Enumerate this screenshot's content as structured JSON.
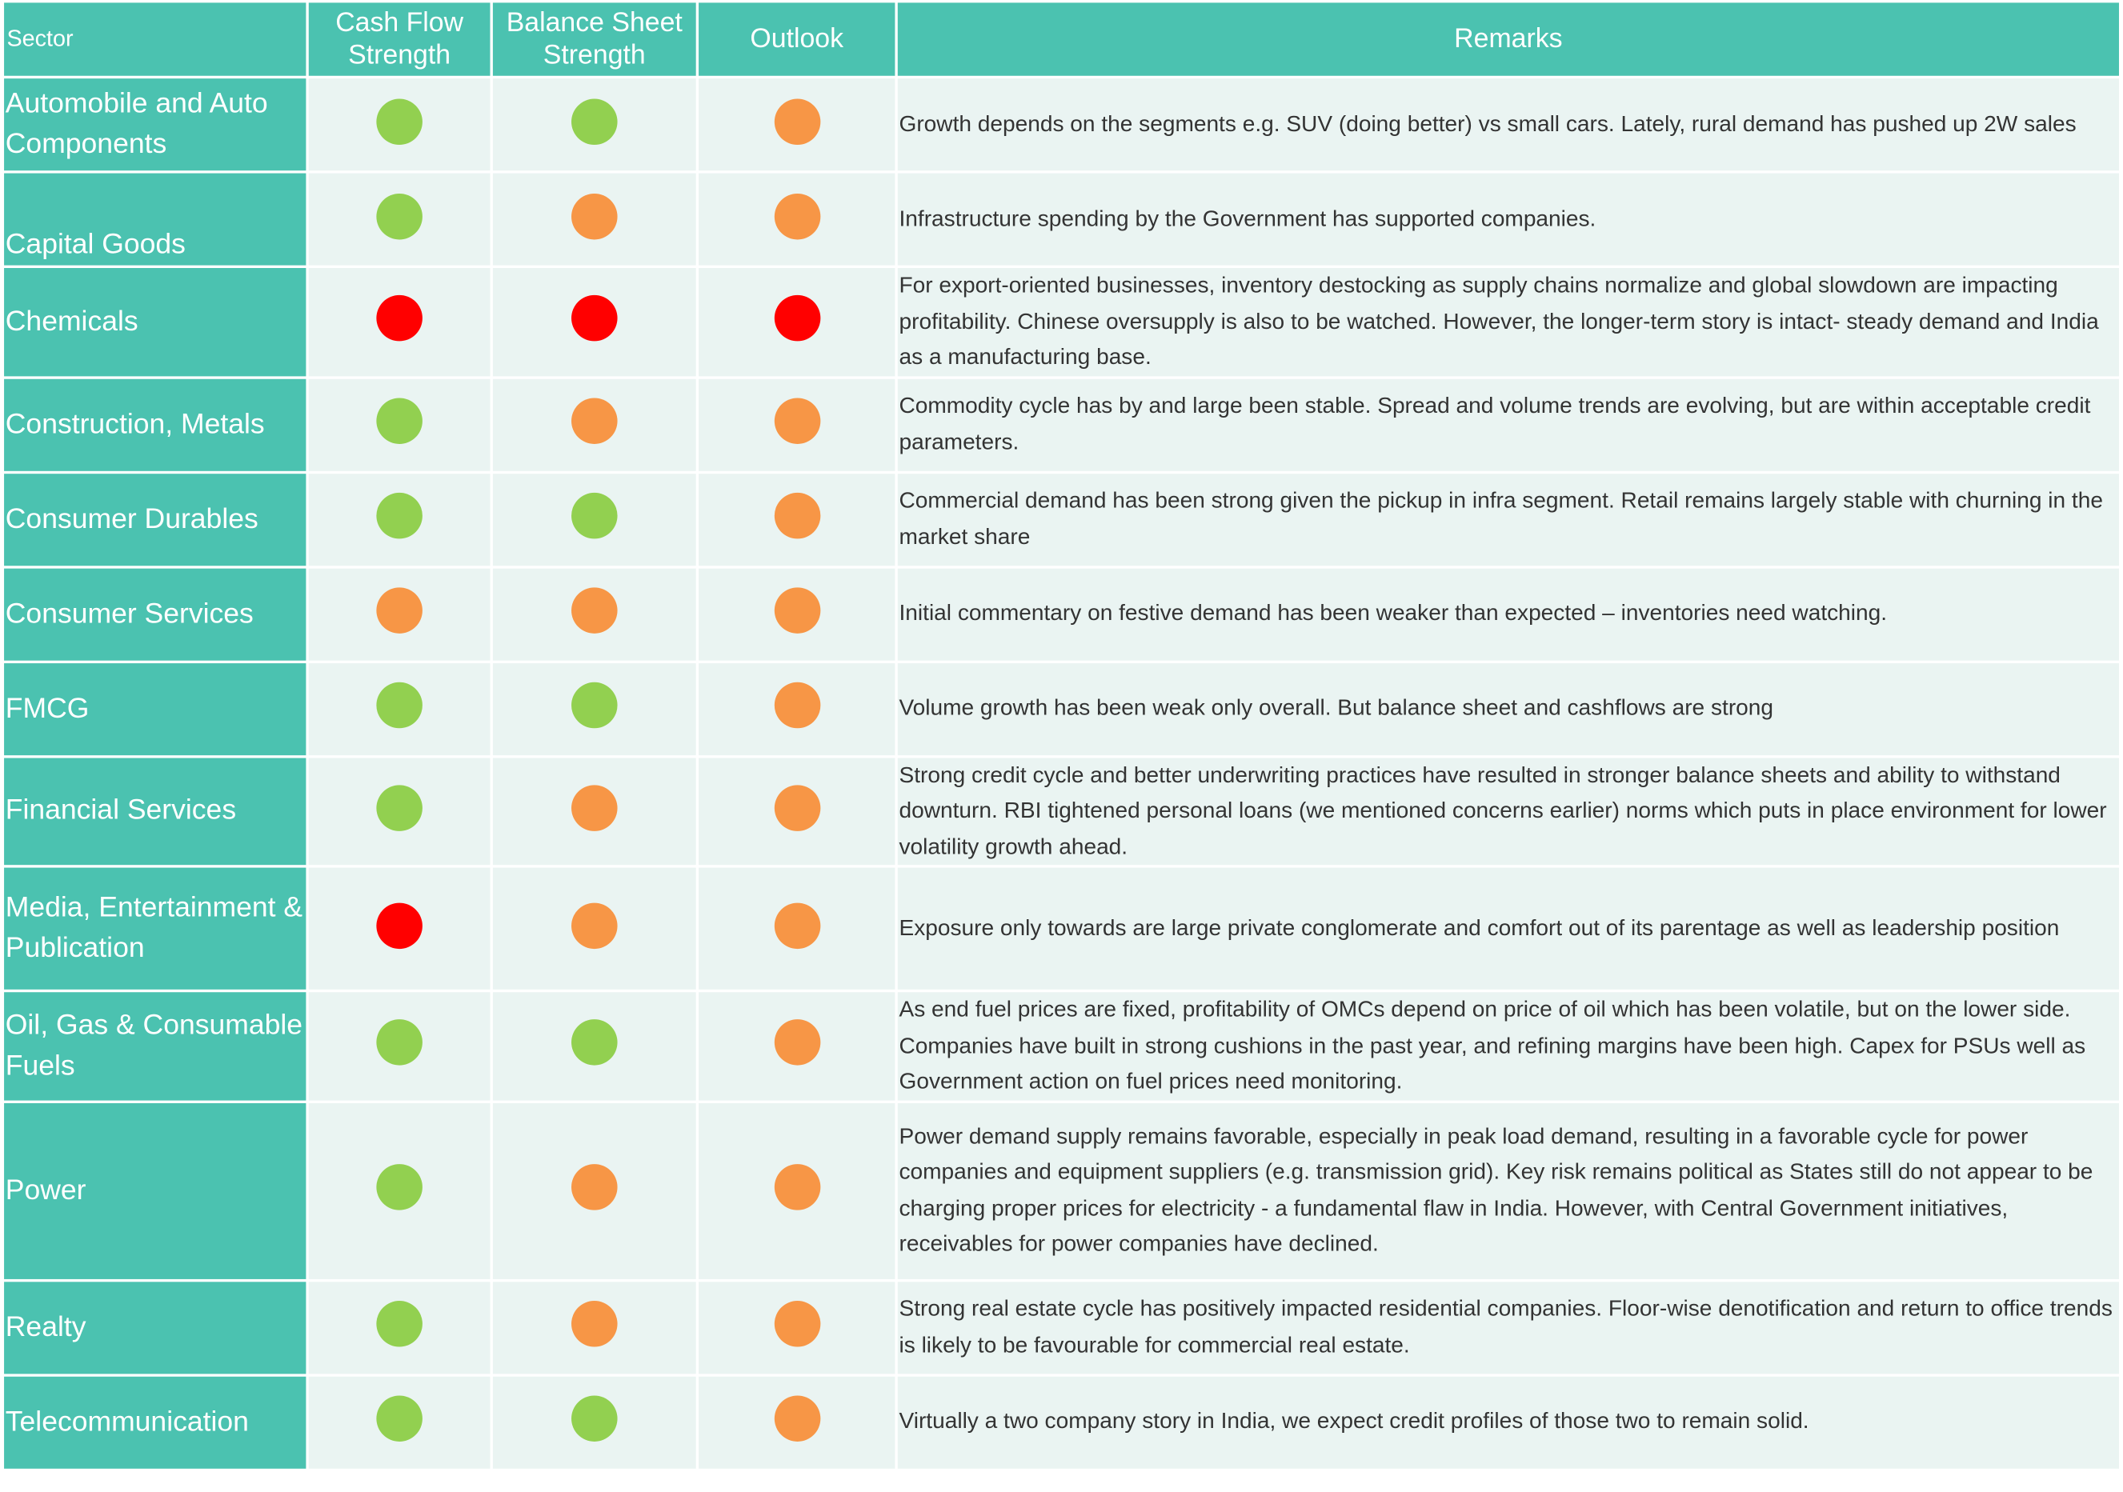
{
  "colors": {
    "header": "#4BC2B0",
    "cell": "#EAF4F2",
    "green": "#92D050",
    "amber": "#F79646",
    "red": "#FF0000"
  },
  "headers": {
    "sector": "Sector",
    "cash_flow": "Cash Flow Strength",
    "balance_sheet": "Balance Sheet Strength",
    "outlook": "Outlook",
    "remarks": "Remarks"
  },
  "rows": [
    {
      "sector": "Automobile and Auto Components",
      "cash_flow": "green",
      "balance_sheet": "green",
      "outlook": "amber",
      "remarks": "Growth depends on the segments e.g. SUV (doing better) vs small cars. Lately, rural demand has pushed up 2W sales"
    },
    {
      "sector": "Capital Goods",
      "cash_flow": "green",
      "balance_sheet": "amber",
      "outlook": "amber",
      "remarks": "Infrastructure spending by the Government has supported companies."
    },
    {
      "sector": "Chemicals",
      "cash_flow": "red",
      "balance_sheet": "red",
      "outlook": "red",
      "remarks": "For export-oriented businesses, inventory destocking as supply chains normalize and global slowdown are impacting profitability. Chinese oversupply is also to be watched. However, the longer-term story is intact- steady demand and India as a manufacturing base."
    },
    {
      "sector": "Construction, Metals",
      "cash_flow": "green",
      "balance_sheet": "amber",
      "outlook": "amber",
      "remarks": "Commodity cycle has by and large been stable. Spread and volume trends are evolving, but are within acceptable credit parameters."
    },
    {
      "sector": "Consumer Durables",
      "cash_flow": "green",
      "balance_sheet": "green",
      "outlook": "amber",
      "remarks": "Commercial demand has been strong given the pickup in infra segment. Retail remains largely stable with churning in the market share"
    },
    {
      "sector": "Consumer Services",
      "cash_flow": "amber",
      "balance_sheet": "amber",
      "outlook": "amber",
      "remarks": "Initial commentary on festive demand has been weaker than expected – inventories need watching."
    },
    {
      "sector": "FMCG",
      "cash_flow": "green",
      "balance_sheet": "green",
      "outlook": "amber",
      "remarks": "Volume growth has been weak only overall. But balance sheet and cashflows are strong"
    },
    {
      "sector": "Financial Services",
      "cash_flow": "green",
      "balance_sheet": "amber",
      "outlook": "amber",
      "remarks": "Strong credit cycle and better underwriting practices have resulted in stronger balance sheets and ability to withstand downturn. RBI tightened personal loans (we mentioned concerns earlier) norms which puts in place environment for lower volatility growth ahead."
    },
    {
      "sector": "Media, Entertainment & Publication",
      "cash_flow": "red",
      "balance_sheet": "amber",
      "outlook": "amber",
      "remarks": "Exposure only towards are large private conglomerate and comfort out of its parentage as well as leadership position"
    },
    {
      "sector": "Oil, Gas & Consumable Fuels",
      "cash_flow": "green",
      "balance_sheet": "green",
      "outlook": "amber",
      "remarks": "As end fuel prices are fixed, profitability of OMCs depend on price of oil which has been volatile, but on the lower side. Companies have built in strong cushions in the past year, and refining margins have  been high. Capex for PSUs well as Government action on fuel prices need monitoring."
    },
    {
      "sector": "Power",
      "cash_flow": "green",
      "balance_sheet": "amber",
      "outlook": "amber",
      "remarks": "Power demand supply remains favorable, especially in peak load demand, resulting in a favorable cycle for power companies and equipment suppliers (e.g. transmission grid). Key risk remains political as States still do not appear to be charging proper prices for electricity - a fundamental flaw in India. However, with Central Government initiatives, receivables for power companies have declined."
    },
    {
      "sector": "Realty",
      "cash_flow": "green",
      "balance_sheet": "amber",
      "outlook": "amber",
      "remarks": "Strong real estate cycle has positively impacted residential companies. Floor-wise denotification and return to office trends is likely to be favourable for commercial real estate."
    },
    {
      "sector": "Telecommunication",
      "cash_flow": "green",
      "balance_sheet": "green",
      "outlook": "amber",
      "remarks": "Virtually a two company story in India, we expect credit profiles of those two to remain solid."
    }
  ]
}
